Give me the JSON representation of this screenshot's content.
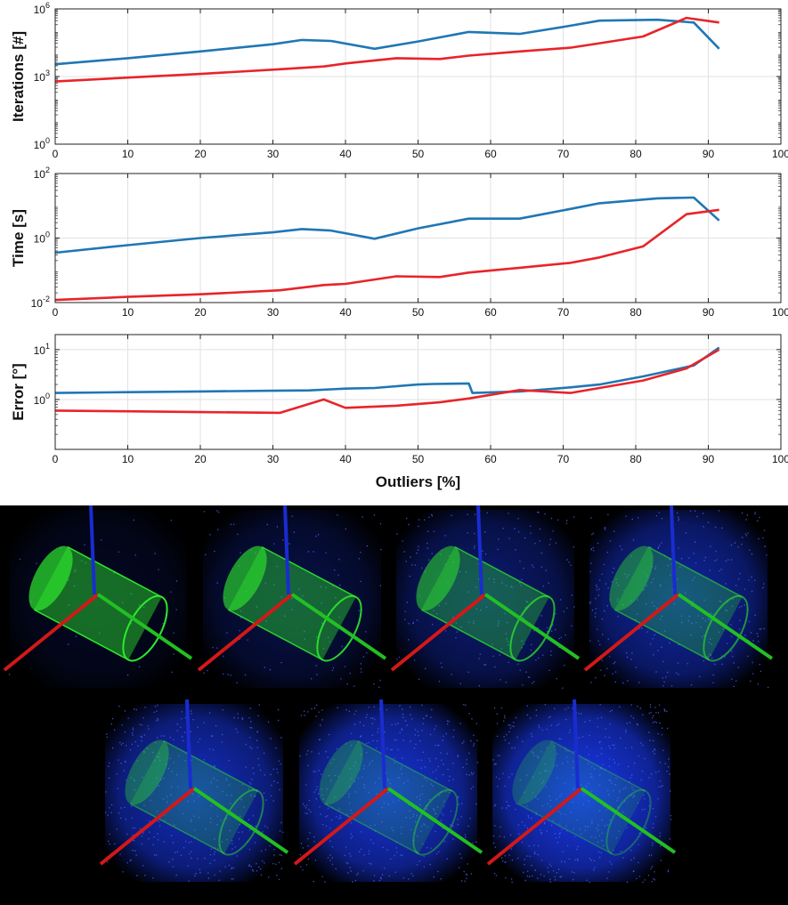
{
  "chart_data": [
    {
      "type": "line",
      "ylabel": "Iterations [#]",
      "xlabel": "",
      "xlim": [
        0,
        100
      ],
      "xticks": [
        "0",
        "10",
        "20",
        "30",
        "40",
        "50",
        "60",
        "70",
        "80",
        "90",
        "100"
      ],
      "ylim": [
        1,
        1000000
      ],
      "yscale": "log",
      "yticks": [
        {
          "base": "10",
          "exp": "0"
        },
        {
          "base": "10",
          "exp": "3"
        },
        {
          "base": "10",
          "exp": "6"
        }
      ],
      "grid": true,
      "series": [
        {
          "color": "#1f77b4",
          "x": [
            0,
            10,
            20,
            30,
            34,
            38,
            44,
            50,
            57,
            64,
            71,
            75,
            83,
            88,
            91.5
          ],
          "y": [
            3500,
            6500,
            13000,
            27000,
            42000,
            38000,
            17000,
            36000,
            95000,
            78000,
            180000,
            300000,
            330000,
            250000,
            17000
          ]
        },
        {
          "color": "#e8242a",
          "x": [
            0,
            10,
            20,
            31,
            37,
            40,
            47,
            53,
            57,
            64,
            71,
            75,
            81,
            87,
            91.5
          ],
          "y": [
            600,
            900,
            1300,
            2100,
            2800,
            3800,
            6500,
            6000,
            8500,
            13000,
            19000,
            30000,
            60000,
            400000,
            250000
          ]
        }
      ]
    },
    {
      "type": "line",
      "ylabel": "Time [s]",
      "xlabel": "",
      "xlim": [
        0,
        100
      ],
      "xticks": [
        "0",
        "10",
        "20",
        "30",
        "40",
        "50",
        "60",
        "70",
        "80",
        "90",
        "100"
      ],
      "ylim": [
        0.01,
        100
      ],
      "yscale": "log",
      "yticks": [
        {
          "base": "10",
          "exp": "-2"
        },
        {
          "base": "10",
          "exp": "0"
        },
        {
          "base": "10",
          "exp": "2"
        }
      ],
      "grid": true,
      "series": [
        {
          "color": "#1f77b4",
          "x": [
            0,
            10,
            20,
            30,
            34,
            38,
            44,
            50,
            57,
            64,
            71,
            75,
            83,
            88,
            91.5
          ],
          "y": [
            0.35,
            0.6,
            1.0,
            1.5,
            1.9,
            1.7,
            0.95,
            2.0,
            4.0,
            4.0,
            8.0,
            12.0,
            17.0,
            18.0,
            3.5
          ]
        },
        {
          "color": "#e8242a",
          "x": [
            0,
            10,
            20,
            31,
            37,
            40,
            47,
            53,
            57,
            64,
            71,
            75,
            81,
            87,
            91.5
          ],
          "y": [
            0.012,
            0.015,
            0.018,
            0.024,
            0.035,
            0.038,
            0.065,
            0.062,
            0.085,
            0.12,
            0.17,
            0.25,
            0.55,
            5.5,
            7.5
          ]
        }
      ]
    },
    {
      "type": "line",
      "ylabel": "Error [°]",
      "xlabel": "Outliers [%]",
      "xlim": [
        0,
        100
      ],
      "xticks": [
        "0",
        "10",
        "20",
        "30",
        "40",
        "50",
        "60",
        "70",
        "80",
        "90",
        "100"
      ],
      "ylim": [
        0.1,
        20
      ],
      "yscale": "log",
      "yticks": [
        {
          "base": "10",
          "exp": "0"
        },
        {
          "base": "10",
          "exp": "1"
        }
      ],
      "grid": true,
      "series": [
        {
          "color": "#1f77b4",
          "x": [
            0,
            10,
            20,
            30,
            35,
            40,
            44,
            50,
            52,
            57,
            57.5,
            64,
            71,
            75,
            81,
            88,
            91.5
          ],
          "y": [
            1.35,
            1.4,
            1.45,
            1.5,
            1.52,
            1.65,
            1.7,
            2.0,
            2.05,
            2.1,
            1.35,
            1.45,
            1.75,
            2.0,
            2.9,
            4.8,
            11.0
          ]
        },
        {
          "color": "#e8242a",
          "x": [
            0,
            10,
            20,
            31,
            37,
            40,
            47,
            53,
            57,
            64,
            71,
            75,
            81,
            87,
            91.5
          ],
          "y": [
            0.6,
            0.58,
            0.56,
            0.54,
            1.0,
            0.68,
            0.75,
            0.88,
            1.05,
            1.55,
            1.35,
            1.7,
            2.4,
            4.2,
            10.0
          ]
        }
      ]
    }
  ],
  "renders": {
    "panels": [
      {
        "outlier_fraction": 0.0
      },
      {
        "outlier_fraction": 0.15
      },
      {
        "outlier_fraction": 0.35
      },
      {
        "outlier_fraction": 0.55
      },
      {
        "outlier_fraction": 0.7
      },
      {
        "outlier_fraction": 0.8
      },
      {
        "outlier_fraction": 0.9
      }
    ],
    "colors": {
      "inlier": "#2ee82e",
      "outlier": "#1a3cff",
      "axis_x": "#d41818",
      "axis_y": "#22c022",
      "axis_z": "#1a2cd0",
      "background": "#000000"
    }
  }
}
